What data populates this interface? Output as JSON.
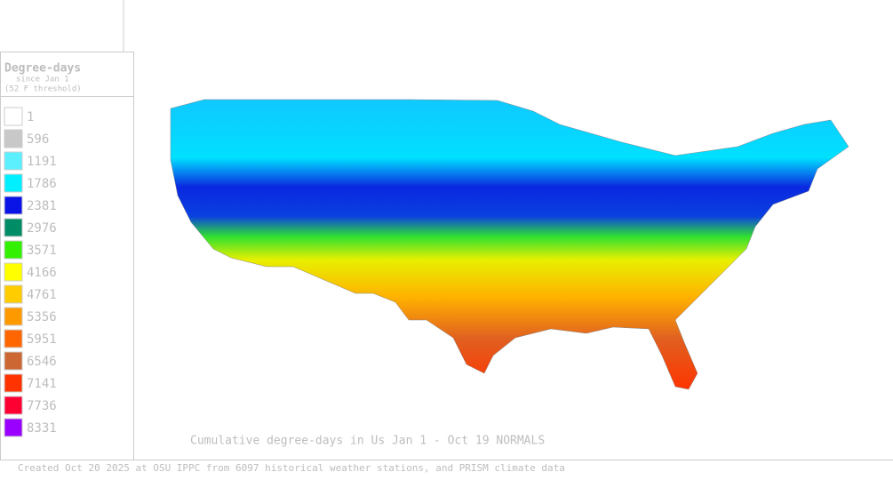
{
  "legend": {
    "title": "Degree-days",
    "subtitle": "since Jan 1",
    "note": "(52 F threshold)",
    "items": [
      {
        "label": 1,
        "color": "#ffffff"
      },
      {
        "label": 596,
        "color": "#c8c8c8"
      },
      {
        "label": 1191,
        "color": "#5cf0ff"
      },
      {
        "label": 1786,
        "color": "#00f0ff"
      },
      {
        "label": 2381,
        "color": "#0a14e6"
      },
      {
        "label": 2976,
        "color": "#008c64"
      },
      {
        "label": 3571,
        "color": "#32f000"
      },
      {
        "label": 4166,
        "color": "#ffff00"
      },
      {
        "label": 4761,
        "color": "#ffcc00"
      },
      {
        "label": 5356,
        "color": "#ff9900"
      },
      {
        "label": 5951,
        "color": "#ff6600"
      },
      {
        "label": 6546,
        "color": "#cc6633"
      },
      {
        "label": 7141,
        "color": "#ff3300"
      },
      {
        "label": 7736,
        "color": "#ff0033"
      },
      {
        "label": 8331,
        "color": "#9900ff"
      }
    ]
  },
  "map_title": "Cumulative degree-days in Us  Jan 1 - Oct 19 NORMALS",
  "footer": "Created Oct 20 2025 at OSU IPPC from 6097 historical weather stations, and PRISM climate data"
}
